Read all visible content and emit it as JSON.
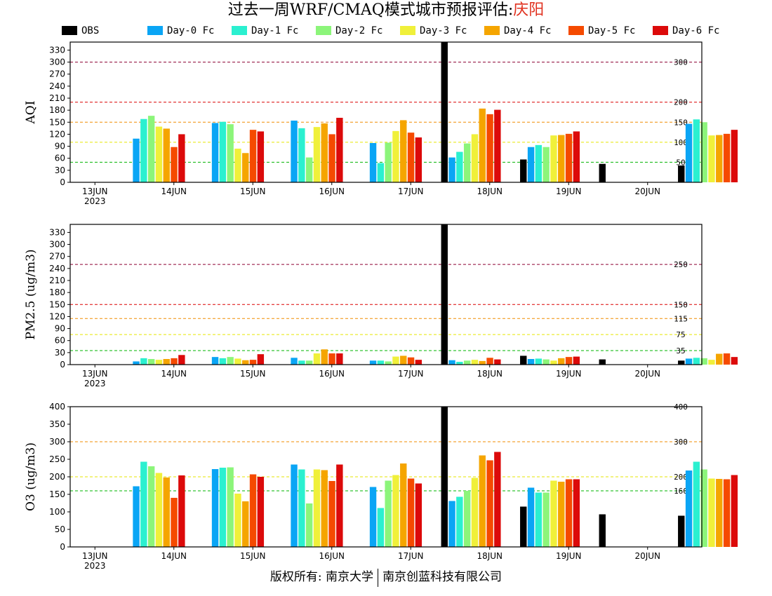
{
  "title": {
    "main": "过去一周WRF/CMAQ模式城市预报评估:",
    "city": "庆阳"
  },
  "legend": [
    {
      "label": "OBS",
      "color": "#000000"
    },
    {
      "label": "Day-0 Fc",
      "color": "#0aa5f5"
    },
    {
      "label": "Day-1 Fc",
      "color": "#2bf0d0"
    },
    {
      "label": "Day-2 Fc",
      "color": "#8cf57a"
    },
    {
      "label": "Day-3 Fc",
      "color": "#f0f03a"
    },
    {
      "label": "Day-4 Fc",
      "color": "#f5a500"
    },
    {
      "label": "Day-5 Fc",
      "color": "#f54a00"
    },
    {
      "label": "Day-6 Fc",
      "color": "#dc0a0a"
    }
  ],
  "footer": {
    "left": "版权所有: 南京大学",
    "right": "南京创蓝科技有限公司"
  },
  "chart_data": [
    {
      "type": "bar",
      "ylabel": "AQI",
      "ylim": [
        0,
        350
      ],
      "yticks": [
        0,
        30,
        60,
        90,
        120,
        150,
        180,
        210,
        240,
        270,
        300,
        330
      ],
      "dates": [
        "13JUN",
        "14JUN",
        "15JUN",
        "16JUN",
        "17JUN",
        "18JUN",
        "19JUN",
        "20JUN"
      ],
      "year_label": "2023",
      "thresholds": [
        {
          "value": 50,
          "label": "50",
          "color": "#00b400"
        },
        {
          "value": 100,
          "label": "100",
          "color": "#e6e600"
        },
        {
          "value": 150,
          "label": "150",
          "color": "#f08c00"
        },
        {
          "value": 200,
          "label": "200",
          "color": "#dc0000"
        },
        {
          "value": 300,
          "label": "300",
          "color": "#8c0032"
        }
      ],
      "series": [
        {
          "name": "OBS",
          "values": [
            null,
            null,
            null,
            null,
            350,
            57,
            46,
            42
          ]
        },
        {
          "name": "Day-0 Fc",
          "values": [
            109,
            148,
            154,
            98,
            62,
            88,
            null,
            146
          ]
        },
        {
          "name": "Day-1 Fc",
          "values": [
            158,
            151,
            135,
            48,
            76,
            93,
            null,
            157
          ]
        },
        {
          "name": "Day-2 Fc",
          "values": [
            166,
            145,
            62,
            99,
            97,
            88,
            null,
            150
          ]
        },
        {
          "name": "Day-3 Fc",
          "values": [
            139,
            84,
            138,
            128,
            120,
            117,
            null,
            117
          ]
        },
        {
          "name": "Day-4 Fc",
          "values": [
            134,
            73,
            147,
            155,
            184,
            118,
            null,
            118
          ]
        },
        {
          "name": "Day-5 Fc",
          "values": [
            88,
            131,
            120,
            124,
            170,
            121,
            null,
            121
          ]
        },
        {
          "name": "Day-6 Fc",
          "values": [
            120,
            127,
            161,
            112,
            181,
            127,
            null,
            131
          ]
        }
      ]
    },
    {
      "type": "bar",
      "ylabel": "PM2.5 (ug/m3)",
      "ylim": [
        0,
        350
      ],
      "yticks": [
        0,
        30,
        60,
        90,
        120,
        150,
        180,
        210,
        240,
        270,
        300,
        330
      ],
      "dates": [
        "13JUN",
        "14JUN",
        "15JUN",
        "16JUN",
        "17JUN",
        "18JUN",
        "19JUN",
        "20JUN"
      ],
      "year_label": "2023",
      "thresholds": [
        {
          "value": 35,
          "label": "35",
          "color": "#00b400"
        },
        {
          "value": 75,
          "label": "75",
          "color": "#e6e600"
        },
        {
          "value": 115,
          "label": "115",
          "color": "#f08c00"
        },
        {
          "value": 150,
          "label": "150",
          "color": "#dc0000"
        },
        {
          "value": 250,
          "label": "250",
          "color": "#8c0032"
        }
      ],
      "series": [
        {
          "name": "OBS",
          "values": [
            null,
            null,
            null,
            null,
            350,
            22,
            13,
            10
          ]
        },
        {
          "name": "Day-0 Fc",
          "values": [
            8,
            19,
            17,
            10,
            11,
            14,
            null,
            15
          ]
        },
        {
          "name": "Day-1 Fc",
          "values": [
            16,
            16,
            10,
            10,
            7,
            15,
            null,
            17
          ]
        },
        {
          "name": "Day-2 Fc",
          "values": [
            14,
            19,
            10,
            8,
            10,
            13,
            null,
            16
          ]
        },
        {
          "name": "Day-3 Fc",
          "values": [
            12,
            15,
            28,
            20,
            12,
            10,
            null,
            12
          ]
        },
        {
          "name": "Day-4 Fc",
          "values": [
            14,
            11,
            38,
            22,
            9,
            16,
            null,
            27
          ]
        },
        {
          "name": "Day-5 Fc",
          "values": [
            16,
            12,
            28,
            18,
            17,
            19,
            null,
            28
          ]
        },
        {
          "name": "Day-6 Fc",
          "values": [
            24,
            26,
            28,
            12,
            13,
            20,
            null,
            19
          ]
        }
      ]
    },
    {
      "type": "bar",
      "ylabel": "O3 (ug/m3)",
      "ylim": [
        0,
        400
      ],
      "yticks": [
        0,
        50,
        100,
        150,
        200,
        250,
        300,
        350,
        400
      ],
      "dates": [
        "13JUN",
        "14JUN",
        "15JUN",
        "16JUN",
        "17JUN",
        "18JUN",
        "19JUN",
        "20JUN"
      ],
      "year_label": "2023",
      "thresholds": [
        {
          "value": 160,
          "label": "160",
          "color": "#00b400"
        },
        {
          "value": 200,
          "label": "200",
          "color": "#e6e600"
        },
        {
          "value": 300,
          "label": "300",
          "color": "#f08c00"
        },
        {
          "value": 400,
          "label": "400",
          "color": "#dc0000"
        }
      ],
      "series": [
        {
          "name": "OBS",
          "values": [
            null,
            null,
            null,
            null,
            400,
            115,
            93,
            89
          ]
        },
        {
          "name": "Day-0 Fc",
          "values": [
            173,
            222,
            235,
            171,
            131,
            169,
            null,
            218
          ]
        },
        {
          "name": "Day-1 Fc",
          "values": [
            243,
            226,
            221,
            111,
            143,
            155,
            null,
            243
          ]
        },
        {
          "name": "Day-2 Fc",
          "values": [
            230,
            227,
            124,
            189,
            160,
            155,
            null,
            221
          ]
        },
        {
          "name": "Day-3 Fc",
          "values": [
            211,
            152,
            221,
            205,
            197,
            189,
            null,
            195
          ]
        },
        {
          "name": "Day-4 Fc",
          "values": [
            198,
            130,
            219,
            238,
            261,
            186,
            null,
            194
          ]
        },
        {
          "name": "Day-5 Fc",
          "values": [
            140,
            207,
            188,
            195,
            247,
            193,
            null,
            193
          ]
        },
        {
          "name": "Day-6 Fc",
          "values": [
            204,
            200,
            235,
            181,
            271,
            193,
            null,
            205
          ]
        }
      ]
    }
  ]
}
